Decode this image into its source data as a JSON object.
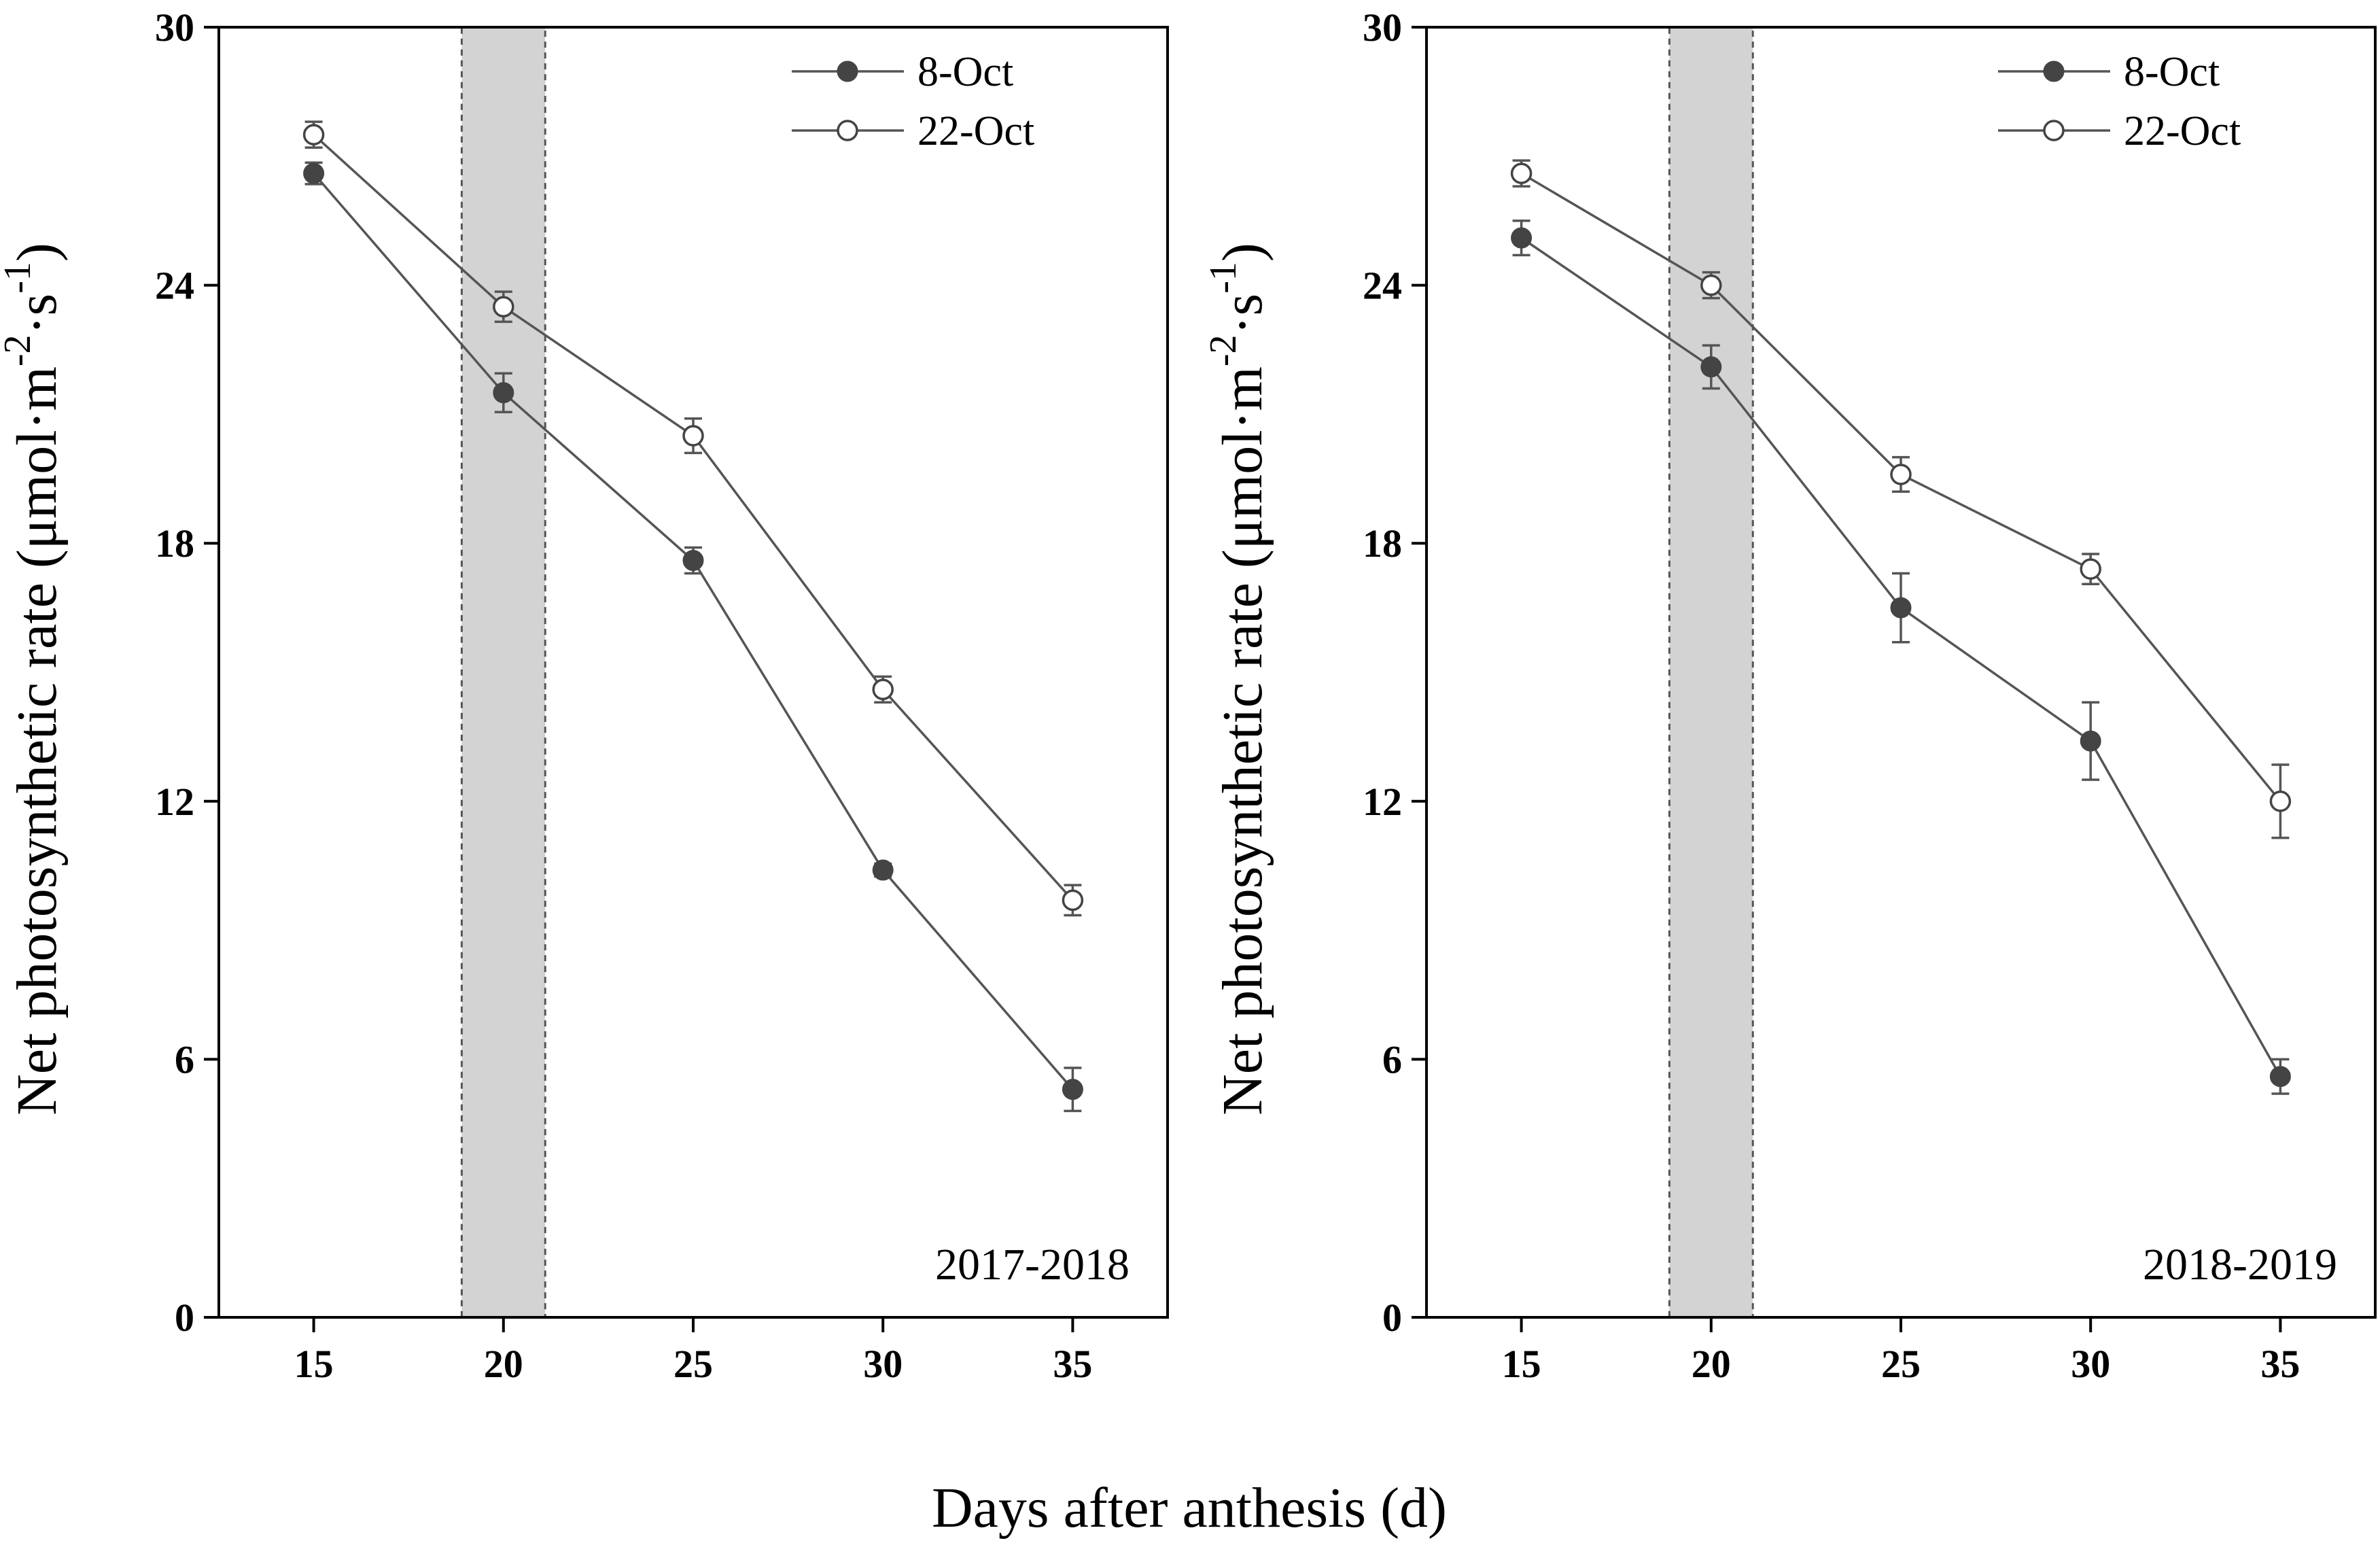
{
  "xlabel": "Days after anthesis (d)",
  "chart_data": [
    {
      "type": "line",
      "annotation": "2017-2018",
      "ylabel": "Net photosynthetic rate (μmol·m",
      "ylabel_sup1": "-2",
      "ylabel_mid": "·s",
      "ylabel_sup2": "-1",
      "ylabel_end": ")",
      "x": [
        15,
        20,
        25,
        30,
        35
      ],
      "xlim": [
        12.5,
        37.5
      ],
      "ylim": [
        0,
        30
      ],
      "xticks": [
        15,
        20,
        25,
        30,
        35
      ],
      "yticks": [
        0,
        6,
        12,
        18,
        24,
        30
      ],
      "shaded_region": [
        18.9,
        21.1
      ],
      "legend_location": "top-right",
      "series": [
        {
          "name": "8-Oct",
          "marker": "filled",
          "values": [
            26.6,
            21.5,
            17.6,
            10.4,
            5.3
          ],
          "errors": [
            0.25,
            0.45,
            0.3,
            0.15,
            0.5
          ]
        },
        {
          "name": "22-Oct",
          "marker": "open",
          "values": [
            27.5,
            23.5,
            20.5,
            14.6,
            9.7
          ],
          "errors": [
            0.3,
            0.35,
            0.4,
            0.3,
            0.35
          ]
        }
      ]
    },
    {
      "type": "line",
      "annotation": "2018-2019",
      "ylabel": "Net photosynthetic rate (μmol·m",
      "ylabel_sup1": "-2",
      "ylabel_mid": "·s",
      "ylabel_sup2": "-1",
      "ylabel_end": ")",
      "x": [
        15,
        20,
        25,
        30,
        35
      ],
      "xlim": [
        12.5,
        37.5
      ],
      "ylim": [
        0,
        30
      ],
      "xticks": [
        15,
        20,
        25,
        30,
        35
      ],
      "yticks": [
        0,
        6,
        12,
        18,
        24,
        30
      ],
      "shaded_region": [
        18.9,
        21.1
      ],
      "legend_location": "top-right",
      "series": [
        {
          "name": "8-Oct",
          "marker": "filled",
          "values": [
            25.1,
            22.1,
            16.5,
            13.4,
            5.6
          ],
          "errors": [
            0.4,
            0.5,
            0.8,
            0.9,
            0.4
          ]
        },
        {
          "name": "22-Oct",
          "marker": "open",
          "values": [
            26.6,
            24.0,
            19.6,
            17.4,
            12.0
          ],
          "errors": [
            0.3,
            0.3,
            0.4,
            0.35,
            0.85
          ]
        }
      ]
    }
  ]
}
